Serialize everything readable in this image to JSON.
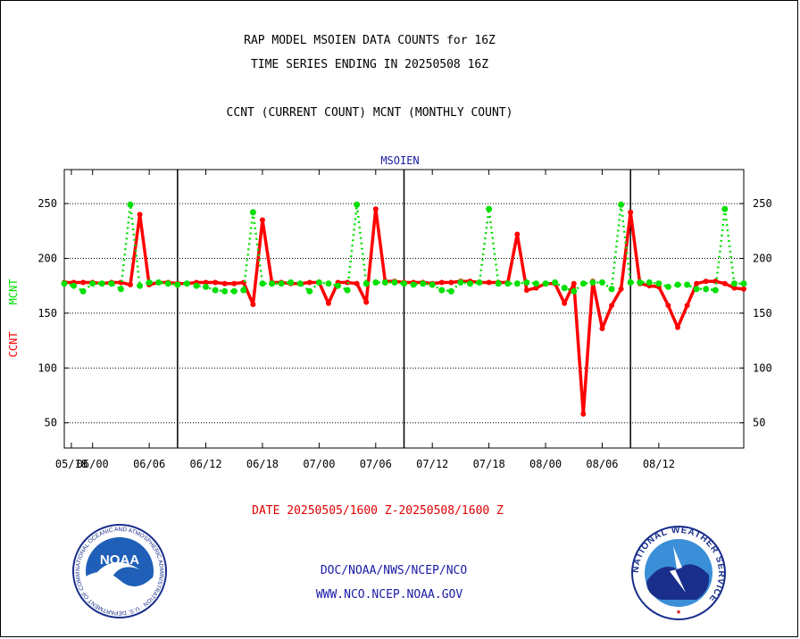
{
  "page": {
    "title_line1": "RAP MODEL MSOIEN DATA COUNTS for 16Z",
    "title_line2": "TIME SERIES ENDING IN 20250508 16Z",
    "subtitle": "CCNT (CURRENT COUNT) MCNT (MONTHLY COUNT)",
    "footer_date": "DATE 20250505/1600 Z-20250508/1600 Z",
    "footer_org": "DOC/NOAA/NWS/NCEP/NCO",
    "footer_url": "WWW.NCO.NCEP.NOAA.GOV",
    "logo_left": "NOAA",
    "logo_left_ring": "NATIONAL OCEANIC AND ATMOSPHERIC ADMINISTRATION · U.S. DEPARTMENT OF COMMERCE",
    "logo_right_ring": "NATIONAL WEATHER SERVICE"
  },
  "colors": {
    "ccnt": "#ff0000",
    "mcnt": "#00e000",
    "axis": "#000000",
    "series_label": "#1a1aa6",
    "logo_blue": "#1f5fb8",
    "logo_navy": "#1a2f8c"
  },
  "chart_data": {
    "type": "line",
    "title": "MSOIEN",
    "ylabel_series": [
      "CCNT",
      "MCNT"
    ],
    "ylim": [
      27,
      281
    ],
    "yticks": [
      50,
      100,
      150,
      200,
      250
    ],
    "grid": true,
    "x_ticks": [
      "05/18",
      "06/00",
      "06/06",
      "06/12",
      "06/18",
      "07/00",
      "07/06",
      "07/12",
      "07/18",
      "08/00",
      "08/06",
      "08/12"
    ],
    "x_range_hours": [
      0,
      72
    ],
    "day_boundaries_hours": [
      12,
      36,
      60
    ],
    "series": [
      {
        "name": "CCNT",
        "x": [
          0,
          1,
          2,
          3,
          4,
          5,
          6,
          7,
          8,
          9,
          10,
          11,
          12,
          13,
          14,
          15,
          16,
          17,
          18,
          19,
          20,
          21,
          22,
          23,
          24,
          25,
          26,
          27,
          28,
          29,
          30,
          31,
          32,
          33,
          34,
          35,
          36,
          37,
          38,
          39,
          40,
          41,
          42,
          43,
          44,
          45,
          46,
          47,
          48,
          49,
          50,
          51,
          52,
          53,
          54,
          55,
          56,
          57,
          58,
          59,
          60,
          61,
          62,
          63,
          64,
          65,
          66,
          67,
          68,
          69,
          70,
          71,
          72
        ],
        "values": [
          178,
          178,
          178,
          178,
          177,
          178,
          178,
          176,
          240,
          176,
          178,
          178,
          177,
          177,
          178,
          178,
          178,
          177,
          177,
          178,
          158,
          235,
          178,
          178,
          177,
          177,
          178,
          178,
          159,
          178,
          178,
          177,
          160,
          245,
          179,
          179,
          178,
          178,
          178,
          177,
          178,
          178,
          179,
          179,
          178,
          178,
          178,
          178,
          222,
          171,
          173,
          177,
          177,
          159,
          177,
          58,
          179,
          136,
          157,
          172,
          242,
          177,
          175,
          174,
          157,
          137,
          157,
          177,
          179,
          179,
          177,
          173,
          172
        ]
      },
      {
        "name": "MCNT",
        "x": [
          0,
          1,
          2,
          3,
          4,
          5,
          6,
          7,
          8,
          9,
          10,
          11,
          12,
          13,
          14,
          15,
          16,
          17,
          18,
          19,
          20,
          21,
          22,
          23,
          24,
          25,
          26,
          27,
          28,
          29,
          30,
          31,
          32,
          33,
          34,
          35,
          36,
          37,
          38,
          39,
          40,
          41,
          42,
          43,
          44,
          45,
          46,
          47,
          48,
          49,
          50,
          51,
          52,
          53,
          54,
          55,
          56,
          57,
          58,
          59,
          60,
          61,
          62,
          63,
          64,
          65,
          66,
          67,
          68,
          69,
          70,
          71,
          72
        ],
        "values": [
          177,
          175,
          170,
          177,
          177,
          177,
          172,
          249,
          175,
          178,
          178,
          177,
          176,
          177,
          175,
          174,
          171,
          170,
          170,
          171,
          242,
          177,
          177,
          177,
          178,
          177,
          170,
          178,
          177,
          175,
          171,
          249,
          177,
          178,
          178,
          178,
          177,
          176,
          177,
          176,
          171,
          170,
          178,
          177,
          178,
          245,
          177,
          177,
          177,
          178,
          177,
          177,
          178,
          173,
          170,
          177,
          178,
          178,
          172,
          249,
          178,
          178,
          178,
          177,
          174,
          176,
          176,
          172,
          172,
          171,
          245,
          177,
          177
        ]
      }
    ]
  }
}
